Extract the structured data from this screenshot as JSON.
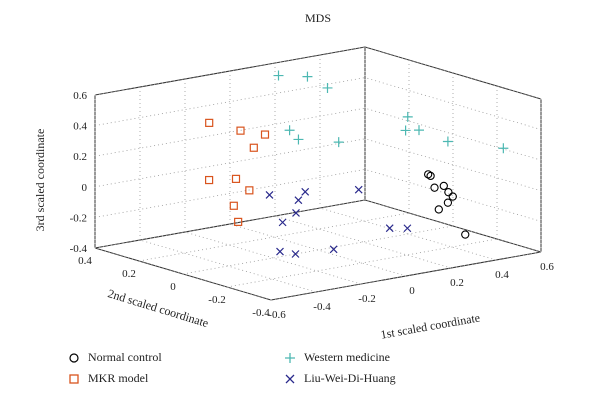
{
  "chart_data": {
    "type": "scatter",
    "title": "MDS",
    "xlabel": "1st scaled coordinate",
    "ylabel": "2nd scaled coordinate",
    "zlabel": "3rd scaled coordinate",
    "xlim": [
      -0.6,
      0.6
    ],
    "ylim": [
      -0.4,
      0.4
    ],
    "zlim": [
      -0.4,
      0.6
    ],
    "x_ticks": [
      "-0.6",
      "-0.4",
      "-0.2",
      "0",
      "0.2",
      "0.4",
      "0.6"
    ],
    "y_ticks": [
      "-0.4",
      "-0.2",
      "0",
      "0.2",
      "0.4"
    ],
    "z_ticks": [
      "-0.4",
      "-0.2",
      "0",
      "0.2",
      "0.4",
      "0.6"
    ],
    "grid": true,
    "legend_position": "bottom",
    "series": [
      {
        "name": "Normal control",
        "marker": "circle",
        "color": "#000000",
        "points": [
          [
            0.42,
            -0.1,
            -0.06
          ],
          [
            0.4,
            -0.14,
            -0.18
          ],
          [
            0.47,
            -0.02,
            -0.02
          ],
          [
            0.46,
            -0.12,
            -0.16
          ],
          [
            0.52,
            0.02,
            -0.06
          ],
          [
            0.52,
            -0.04,
            -0.1
          ],
          [
            0.56,
            -0.02,
            -0.16
          ],
          [
            0.56,
            -0.04,
            -0.18
          ],
          [
            0.41,
            -0.25,
            -0.3
          ]
        ]
      },
      {
        "name": "MKR model",
        "marker": "square",
        "color": "#d9541e",
        "points": [
          [
            -0.2,
            0.29,
            0.36
          ],
          [
            -0.1,
            0.25,
            0.3
          ],
          [
            -0.04,
            0.2,
            0.28
          ],
          [
            -0.08,
            0.21,
            0.2
          ],
          [
            -0.22,
            0.27,
            0.0
          ],
          [
            -0.12,
            0.25,
            -0.01
          ],
          [
            -0.09,
            0.22,
            -0.08
          ],
          [
            -0.12,
            0.26,
            -0.19
          ],
          [
            -0.13,
            0.23,
            -0.28
          ]
        ]
      },
      {
        "name": "Western medicine",
        "marker": "plus",
        "color": "#4db8b2",
        "points": [
          [
            0.02,
            0.2,
            0.65
          ],
          [
            0.09,
            0.14,
            0.65
          ],
          [
            0.14,
            0.1,
            0.58
          ],
          [
            0.04,
            0.17,
            0.3
          ],
          [
            0.05,
            0.14,
            0.25
          ],
          [
            0.18,
            0.09,
            0.22
          ],
          [
            0.35,
            -0.05,
            0.4
          ],
          [
            0.36,
            -0.03,
            0.3
          ],
          [
            0.4,
            -0.05,
            0.3
          ],
          [
            0.46,
            -0.12,
            0.24
          ],
          [
            0.55,
            -0.28,
            0.24
          ]
        ]
      },
      {
        "name": "Liu-Wei-Di-Huang",
        "marker": "x",
        "color": "#2a2a8c",
        "points": [
          [
            -0.02,
            0.2,
            -0.12
          ],
          [
            0.04,
            0.13,
            -0.14
          ],
          [
            0.08,
            0.14,
            -0.1
          ],
          [
            -0.04,
            0.12,
            -0.26
          ],
          [
            -0.12,
            0.05,
            -0.4
          ],
          [
            -0.1,
            0.0,
            -0.4
          ],
          [
            0.05,
            -0.02,
            -0.4
          ],
          [
            0.26,
            -0.06,
            -0.3
          ],
          [
            0.28,
            -0.12,
            -0.28
          ],
          [
            0.22,
            0.04,
            -0.08
          ],
          [
            0.0,
            0.1,
            -0.2
          ]
        ]
      }
    ]
  }
}
